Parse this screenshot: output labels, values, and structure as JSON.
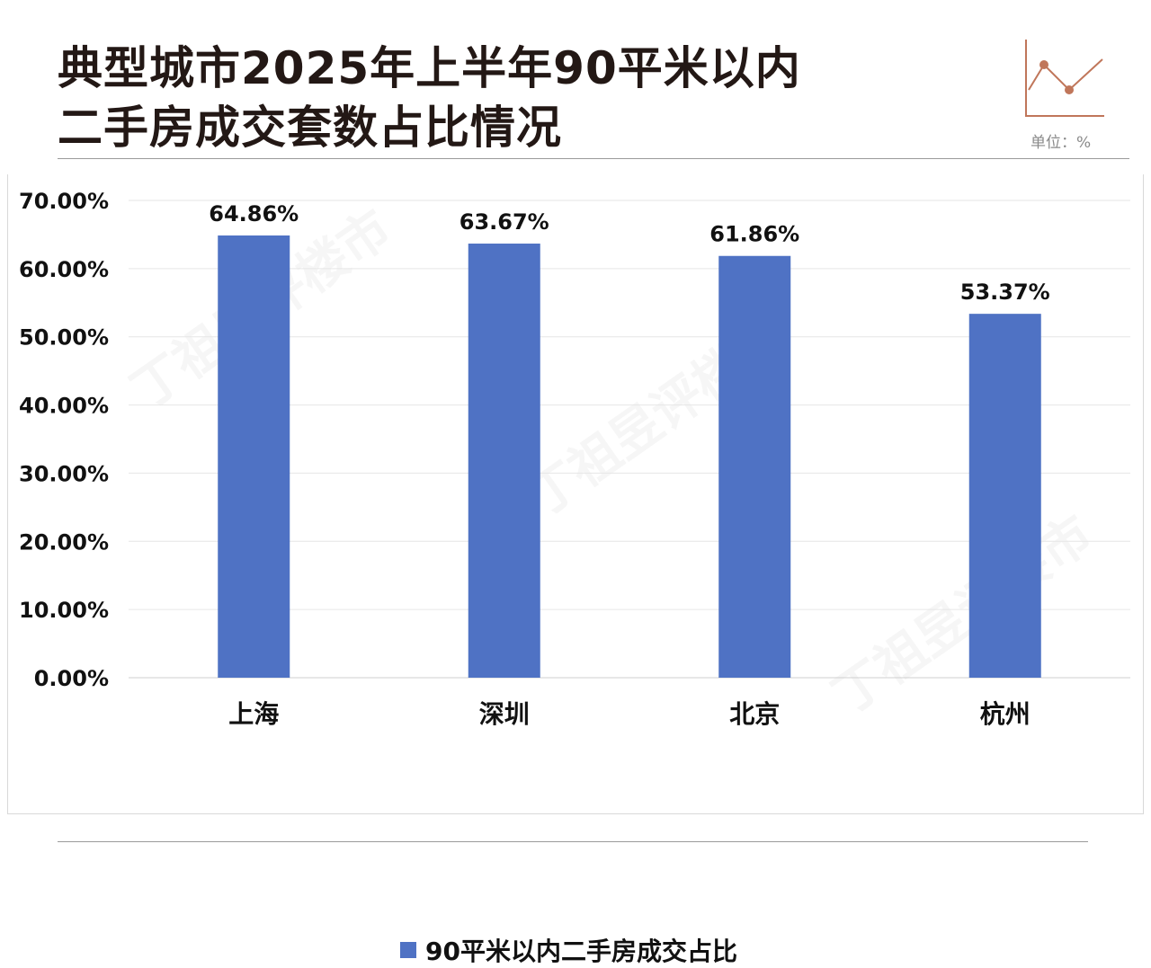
{
  "header": {
    "title_line1": "典型城市2025年上半年90平米以内",
    "title_line2": "二手房成交套数占比情况",
    "unit": "单位：%"
  },
  "chart_data": {
    "type": "bar",
    "title": "典型城市2025年上半年90平米以内二手房成交套数占比情况",
    "categories": [
      "上海",
      "深圳",
      "北京",
      "杭州"
    ],
    "series": [
      {
        "name": "90平米以内二手房成交占比",
        "values": [
          64.86,
          63.67,
          61.86,
          53.37
        ]
      }
    ],
    "data_labels": [
      "64.86%",
      "63.67%",
      "61.86%",
      "53.37%"
    ],
    "y_ticks": [
      0,
      10,
      20,
      30,
      40,
      50,
      60,
      70
    ],
    "y_tick_labels": [
      "0.00%",
      "10.00%",
      "20.00%",
      "30.00%",
      "40.00%",
      "50.00%",
      "60.00%",
      "70.00%"
    ],
    "ylim": [
      0,
      70
    ],
    "xlabel": "",
    "ylabel": "",
    "grid": true,
    "legend_position": "bottom",
    "bar_color": "#4f72c4"
  },
  "colors": {
    "title": "#231815",
    "icon": "#c0765a",
    "grid": "#e6e6e6"
  }
}
